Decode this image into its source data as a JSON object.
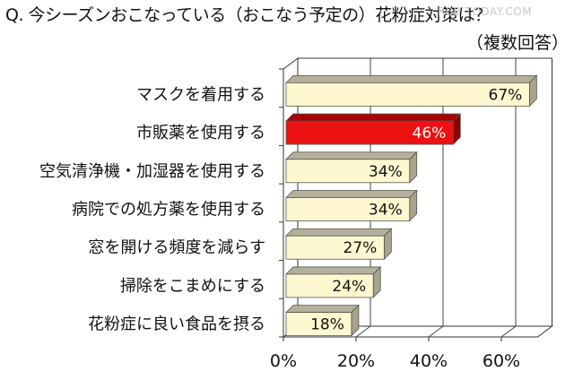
{
  "title": "Q. 今シーズンおこなっている（おこなう予定の）花粉症対策は？",
  "subtitle": "（複数回答）",
  "watermark": "RBB TODAY.COM",
  "chart_data": {
    "type": "bar",
    "orientation": "horizontal",
    "style": "3d",
    "title": "Q. 今シーズンおこなっている（おこなう予定の）花粉症対策は？",
    "subtitle": "（複数回答）",
    "categories": [
      "マスクを着用する",
      "市販薬を使用する",
      "空気清浄機・加湿器を使用する",
      "病院での処方薬を使用する",
      "窓を開ける頻度を減らす",
      "掃除をこまめにする",
      "花粉症に良い食品を摂る"
    ],
    "values": [
      67,
      46,
      34,
      34,
      27,
      24,
      18
    ],
    "value_labels": [
      "67%",
      "46%",
      "34%",
      "34%",
      "27%",
      "24%",
      "18%"
    ],
    "highlight_index": 1,
    "colors": {
      "default_bar": "#fdf8d0",
      "highlight_bar": "#ee1111",
      "bar_top": "#b5b099",
      "bar_side": "#a8a38b"
    },
    "xlabel": "",
    "ylabel": "",
    "xlim": [
      0,
      70
    ],
    "xticks": [
      "0%",
      "20%",
      "40%",
      "60%"
    ],
    "grid": true,
    "legend": "none"
  }
}
